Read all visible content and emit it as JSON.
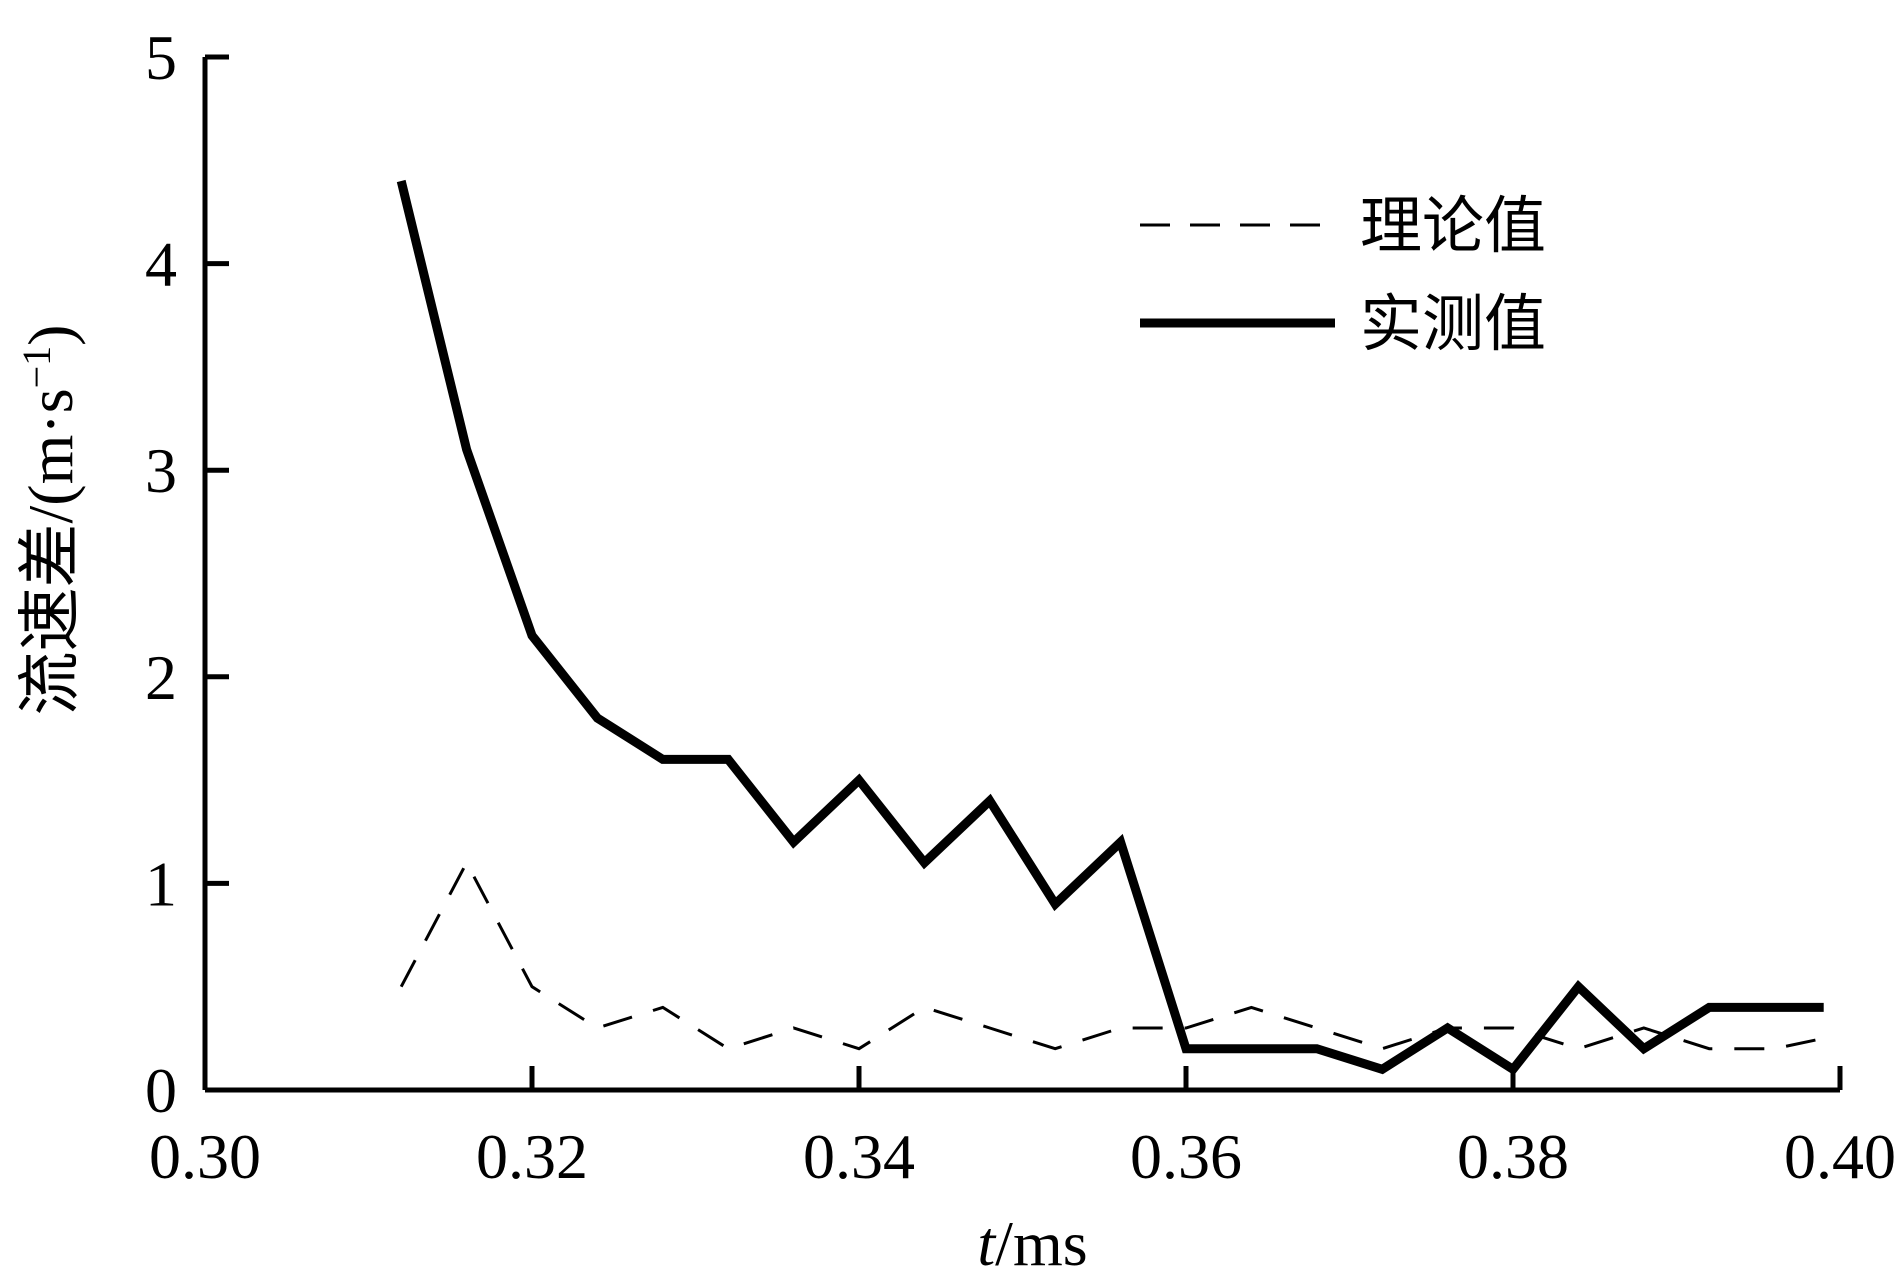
{
  "chart_data": {
    "type": "line",
    "title": "",
    "xlabel": "t/ms",
    "xlabel_var": "t",
    "xlabel_unit": "/ms",
    "ylabel": "流速差/(m·s−1)",
    "ylabel_main": "流速差/(m·s",
    "ylabel_exp": "−1",
    "ylabel_close": ")",
    "xlim": [
      0.3,
      0.4
    ],
    "ylim": [
      0,
      5
    ],
    "xticks": [
      0.3,
      0.32,
      0.34,
      0.36,
      0.38,
      0.4
    ],
    "xtick_labels": [
      "0.30",
      "0.32",
      "0.34",
      "0.36",
      "0.38",
      "0.40"
    ],
    "yticks": [
      0,
      1,
      2,
      3,
      4,
      5
    ],
    "ytick_labels": [
      "0",
      "1",
      "2",
      "3",
      "4",
      "5"
    ],
    "grid": false,
    "legend_position": "top-right",
    "series": [
      {
        "name": "理论值",
        "style": "dashed",
        "color": "#000000",
        "x": [
          0.312,
          0.316,
          0.32,
          0.324,
          0.328,
          0.332,
          0.336,
          0.34,
          0.344,
          0.348,
          0.352,
          0.356,
          0.36,
          0.364,
          0.368,
          0.372,
          0.376,
          0.38,
          0.384,
          0.388,
          0.392,
          0.396,
          0.399
        ],
        "y": [
          0.5,
          1.1,
          0.5,
          0.3,
          0.4,
          0.2,
          0.3,
          0.2,
          0.4,
          0.3,
          0.2,
          0.3,
          0.3,
          0.4,
          0.3,
          0.2,
          0.3,
          0.3,
          0.2,
          0.3,
          0.2,
          0.2,
          0.25
        ]
      },
      {
        "name": "实测值",
        "style": "solid",
        "color": "#000000",
        "x": [
          0.312,
          0.316,
          0.32,
          0.324,
          0.328,
          0.332,
          0.336,
          0.34,
          0.344,
          0.348,
          0.352,
          0.356,
          0.36,
          0.364,
          0.368,
          0.372,
          0.376,
          0.38,
          0.384,
          0.388,
          0.392,
          0.396,
          0.399
        ],
        "y": [
          4.4,
          3.1,
          2.2,
          1.8,
          1.6,
          1.6,
          1.2,
          1.5,
          1.1,
          1.4,
          0.9,
          1.2,
          0.2,
          0.2,
          0.2,
          0.1,
          0.3,
          0.1,
          0.5,
          0.2,
          0.4,
          0.4,
          0.4
        ]
      }
    ]
  }
}
